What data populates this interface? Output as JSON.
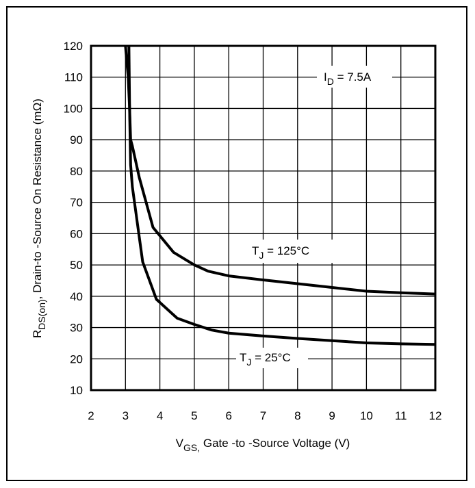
{
  "chart_data": {
    "type": "line",
    "x_axis": {
      "label_main": "V",
      "label_sub": "GS,",
      "label_rest": " Gate -to -Source Voltage  (V)",
      "min": 2,
      "max": 12,
      "ticks": [
        "2",
        "3",
        "4",
        "5",
        "6",
        "7",
        "8",
        "9",
        "10",
        "11",
        "12"
      ]
    },
    "y_axis": {
      "label_main": "R",
      "label_sub": "DS(on)",
      "label_rest": ",  Drain-to -Source On Resistance (mΩ)",
      "min": 10,
      "max": 120,
      "ticks": [
        "10",
        "20",
        "30",
        "40",
        "50",
        "60",
        "70",
        "80",
        "90",
        "100",
        "110",
        "120"
      ]
    },
    "grid": true,
    "annotation": {
      "main": "I",
      "sub": "D",
      "rest": " = 7.5A"
    },
    "series": [
      {
        "name": "T_J = 125°C",
        "label_main": "T",
        "label_sub": "J",
        "label_rest": " = 125°C",
        "x": [
          3.0,
          3.08,
          3.12,
          3.15,
          3.2,
          3.4,
          3.8,
          4.4,
          5.0,
          5.4,
          6.0,
          7.0,
          8.0,
          9.0,
          10.0,
          11.0,
          12.0
        ],
        "y": [
          120,
          110,
          100,
          90,
          88,
          78,
          62,
          54,
          50,
          48,
          46.5,
          45.2,
          44,
          42.8,
          41.6,
          41.1,
          40.7
        ]
      },
      {
        "name": "T_J = 25°C",
        "label_main": "T",
        "label_sub": "J",
        "label_rest": " = 25°C",
        "x": [
          3.1,
          3.12,
          3.15,
          3.2,
          3.5,
          3.9,
          4.5,
          5.0,
          5.5,
          6.0,
          7.0,
          8.0,
          9.0,
          10.0,
          11.0,
          12.0
        ],
        "y": [
          120,
          100,
          82,
          75,
          51,
          39,
          33,
          31,
          29.2,
          28.2,
          27.3,
          26.5,
          25.8,
          25.1,
          24.8,
          24.6
        ]
      }
    ]
  }
}
